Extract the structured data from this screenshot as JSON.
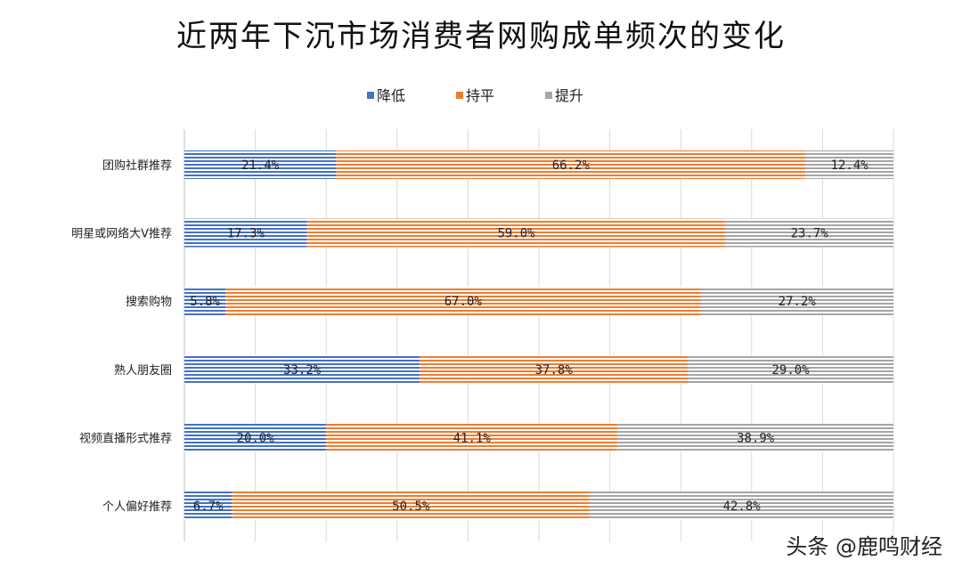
{
  "chart_data": {
    "type": "bar",
    "orientation": "horizontal",
    "stacked": true,
    "title": "近两年下沉市场消费者网购成单频次的变化",
    "categories": [
      "团购社群推荐",
      "明星或网络大V推荐",
      "搜索购物",
      "熟人朋友圈",
      "视频直播形式推荐",
      "个人偏好推荐"
    ],
    "series": [
      {
        "name": "降低",
        "color": "#4472c4",
        "values": [
          21.4,
          17.3,
          5.8,
          33.2,
          20.0,
          6.7
        ]
      },
      {
        "name": "持平",
        "color": "#ed7d31",
        "values": [
          66.2,
          59.0,
          67.0,
          37.8,
          41.1,
          50.5
        ]
      },
      {
        "name": "提升",
        "color": "#a5a5a5",
        "values": [
          12.4,
          23.7,
          27.2,
          29.0,
          38.9,
          42.8
        ]
      }
    ],
    "value_labels": [
      [
        "21.4%",
        "66.2%",
        "12.4%"
      ],
      [
        "17.3%",
        "59.0%",
        "23.7%"
      ],
      [
        "5.8%",
        "67.0%",
        "27.2%"
      ],
      [
        "33.2%",
        "37.8%",
        "29.0%"
      ],
      [
        "20.0%",
        "41.1%",
        "38.9%"
      ],
      [
        "6.7%",
        "50.5%",
        "42.8%"
      ]
    ],
    "xlim": [
      0,
      100
    ],
    "grid": true,
    "legend_position": "top"
  },
  "watermark": "头条 @鹿鸣财经"
}
